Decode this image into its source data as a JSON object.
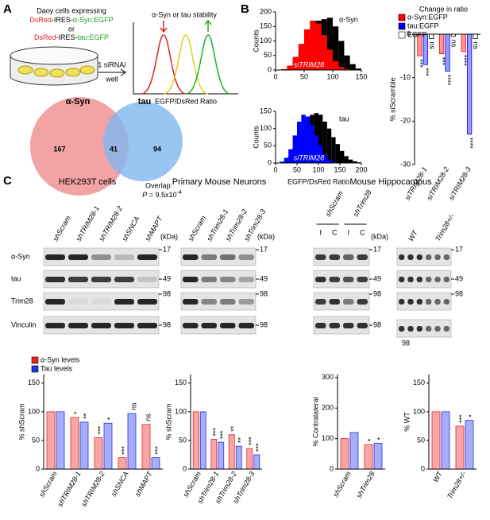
{
  "panel_labels": [
    "A",
    "B",
    "C"
  ],
  "panel_a": {
    "cells": "Daoy cells expressing",
    "construct_1": [
      "DsRed",
      "-IRES-",
      "α-Syn:EGFP"
    ],
    "or": "or",
    "construct_2": [
      "DsRed",
      "-IRES-",
      "tau:EGFP"
    ],
    "sirna": "1 siRNA/",
    "well": "well",
    "stability": "α-Syn or tau stability",
    "ratio_label": "EGFP/DsRed Ratio",
    "venn": {
      "left_label": "α-Syn",
      "right_label": "tau",
      "left_only": 167,
      "overlap": 41,
      "right_only": 94,
      "overlap_label": "Overlap:",
      "p_symbol": "P",
      "p_text": " = 9.5x10",
      "p_exponent": "-4"
    }
  },
  "panel_c": {
    "hek": {
      "title": "HEK293T cells",
      "lanes": [
        "shScram",
        "shTRIM28-1",
        "shTRIM28-2",
        "shSNCA",
        "shMAPT"
      ],
      "kda_label": "(kDa)",
      "rows": [
        "α-Syn",
        "tau",
        "Trim28",
        "Vinculin"
      ],
      "kda": [
        17,
        49,
        98,
        98
      ]
    },
    "neurons": {
      "title": "Primary Mouse Neurons",
      "lanes": [
        "shScram",
        "shTrim28-1",
        "shTrim28-2",
        "shTrim28-3"
      ],
      "kda_label": "(kDa)",
      "kda": [
        17,
        49,
        98,
        98
      ]
    },
    "hippocampus": {
      "title": "Mouse Hippocampus",
      "groups": [
        "shScram",
        "shTrim28"
      ],
      "sides": [
        "I",
        "C",
        "I",
        "C"
      ],
      "kda_label": "(kDa)",
      "kda": [
        17,
        49,
        98,
        98
      ]
    },
    "genotype": {
      "lanes": [
        "WT",
        "Trim28+/-"
      ],
      "kda": [
        17,
        49,
        98,
        98
      ]
    }
  },
  "chart_data": [
    {
      "type": "histogram",
      "label": "α-Syn",
      "ylabel": "Counts",
      "annotation": "siTRIM28",
      "bins": [
        0,
        10,
        20,
        30,
        40,
        50,
        60,
        70,
        80,
        90,
        100,
        110,
        120,
        130,
        140,
        150
      ],
      "series": [
        {
          "color": "#000000",
          "values": [
            0,
            2,
            10,
            30,
            60,
            100,
            140,
            170,
            175,
            180,
            150,
            100,
            50,
            20,
            5
          ]
        },
        {
          "color": "#ff0000",
          "values": [
            0,
            3,
            15,
            45,
            90,
            140,
            170,
            160,
            120,
            70,
            30,
            10,
            3,
            0,
            0
          ]
        }
      ],
      "xlim": [
        0,
        150
      ],
      "xticks": [
        0,
        50,
        100,
        150
      ],
      "ylim": [
        0,
        200
      ],
      "yticks": [
        0,
        50,
        100,
        150,
        200
      ]
    },
    {
      "type": "histogram",
      "label": "tau",
      "ylabel": "Counts",
      "annotation": "siTRIM28",
      "xlabel": "EGFP/DsRed Ratio",
      "bins": [
        0,
        10,
        20,
        30,
        40,
        50,
        60,
        70,
        80,
        90,
        100,
        110,
        120,
        130,
        140,
        150,
        160,
        170,
        180,
        190,
        200
      ],
      "series": [
        {
          "color": "#000000",
          "values": [
            0,
            2,
            8,
            20,
            45,
            80,
            110,
            130,
            140,
            145,
            140,
            120,
            100,
            75,
            55,
            35,
            20,
            10,
            5,
            2
          ]
        },
        {
          "color": "#0000ff",
          "values": [
            0,
            4,
            15,
            40,
            80,
            120,
            140,
            135,
            110,
            80,
            50,
            25,
            10,
            4,
            1,
            0,
            0,
            0,
            0,
            0
          ]
        }
      ],
      "xlim": [
        0,
        200
      ],
      "xticks": [
        0,
        50,
        100,
        150,
        200
      ],
      "ylim": [
        0,
        150
      ],
      "yticks": [
        0,
        50,
        100,
        150
      ]
    },
    {
      "type": "bar",
      "title": "Change in ratio",
      "ylabel": "% siScramble",
      "categories": [
        "siTRIM28-1",
        "siTRIM28-2",
        "siTRIM28-3"
      ],
      "series": [
        {
          "name": "α-Syn:EGFP",
          "color": "#ff0000",
          "values": [
            -5,
            -4.5,
            -4
          ],
          "annotations": [
            "***",
            "***",
            "****"
          ]
        },
        {
          "name": "tau:EGFP",
          "color": "#0000ff",
          "values": [
            -7,
            -8.5,
            -23
          ],
          "annotations": [
            "***",
            "****",
            "****"
          ]
        },
        {
          "name": "EGFP",
          "color": "#ffffff",
          "values": [
            -1,
            -0.5,
            -1
          ],
          "annotations": [
            "ns",
            "ns",
            "ns"
          ]
        }
      ],
      "ylim": [
        -30,
        0
      ],
      "yticks": [
        0,
        -10,
        -20,
        -30
      ]
    },
    {
      "type": "bar",
      "ylabel": "% shScram",
      "categories": [
        "shScram",
        "shTRIM28-1",
        "shTRIM28-2",
        "shSNCA",
        "shMAPT"
      ],
      "series": [
        {
          "name": "α-Syn levels",
          "color": "#ee2222",
          "values": [
            100,
            90,
            55,
            20,
            78
          ],
          "annotations": [
            null,
            "*",
            "***",
            "***",
            "ns"
          ]
        },
        {
          "name": "Tau levels",
          "color": "#2233ee",
          "values": [
            100,
            82,
            80,
            97,
            20
          ],
          "annotations": [
            null,
            "**",
            "*",
            "ns",
            "***"
          ]
        }
      ],
      "ylim": [
        0,
        165
      ],
      "yticks": [
        0,
        50,
        100,
        150
      ]
    },
    {
      "type": "bar",
      "ylabel": "% shScram",
      "categories": [
        "shScram",
        "shTrim28-1",
        "shTrim28-2",
        "shTrim28-3"
      ],
      "series": [
        {
          "color": "#ee2222",
          "values": [
            100,
            52,
            60,
            36
          ],
          "annotations": [
            null,
            "***",
            "**",
            "***"
          ]
        },
        {
          "color": "#2233ee",
          "values": [
            100,
            47,
            40,
            25
          ],
          "annotations": [
            null,
            "***",
            "**",
            "***"
          ]
        }
      ],
      "ylim": [
        0,
        165
      ],
      "yticks": [
        0,
        50,
        100,
        150
      ]
    },
    {
      "type": "bar",
      "ylabel": "% Contralateral",
      "categories": [
        "shScram",
        "shTrim28"
      ],
      "series": [
        {
          "color": "#ee2222",
          "values": [
            100,
            80
          ],
          "annotations": [
            null,
            "*"
          ]
        },
        {
          "color": "#2233ee",
          "values": [
            120,
            85
          ],
          "annotations": [
            null,
            "*"
          ]
        }
      ],
      "ylim": [
        0,
        310
      ],
      "yticks": [
        0,
        100,
        200,
        300
      ]
    },
    {
      "type": "bar",
      "ylabel": "% WT",
      "categories": [
        "WT",
        "Trim28+/-"
      ],
      "series": [
        {
          "color": "#ee2222",
          "values": [
            100,
            75
          ],
          "annotations": [
            null,
            "***"
          ]
        },
        {
          "color": "#2233ee",
          "values": [
            100,
            85
          ],
          "annotations": [
            null,
            "*"
          ]
        }
      ],
      "ylim": [
        0,
        165
      ],
      "yticks": [
        0,
        50,
        100,
        150
      ]
    }
  ]
}
